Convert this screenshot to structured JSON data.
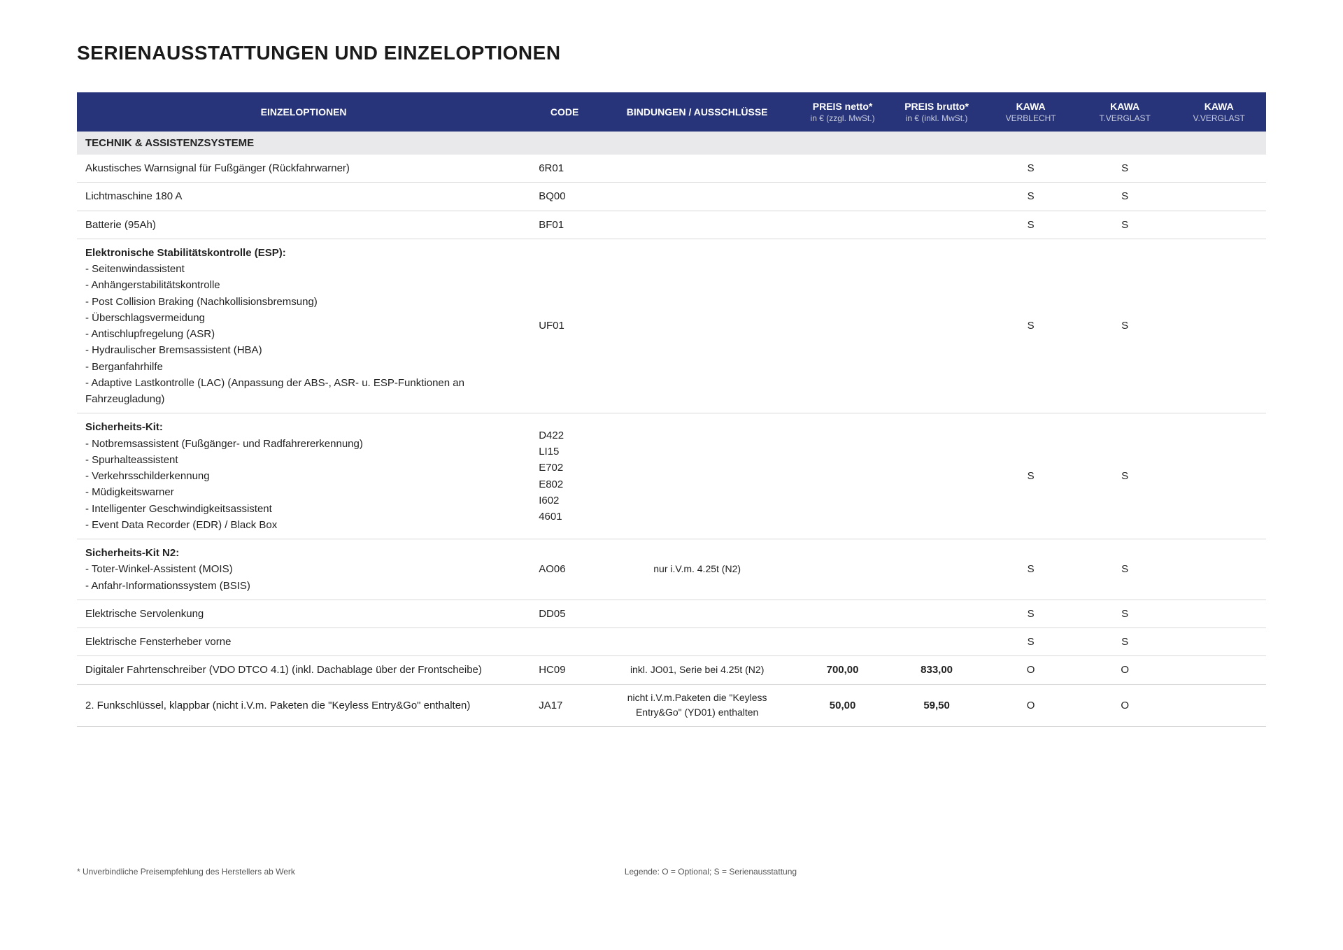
{
  "title": "SERIENAUSSTATTUNGEN UND EINZELOPTIONEN",
  "colors": {
    "header_bg": "#27347a",
    "header_text": "#ffffff",
    "section_bg": "#e9e9ec",
    "row_border": "#d9d9dc"
  },
  "columns": {
    "opt": "EINZELOPTIONEN",
    "code": "CODE",
    "bind": "BINDUNGEN / AUSSCHLÜSSE",
    "netto": "PREIS netto*",
    "netto_sub": "in € (zzgl. MwSt.)",
    "brutto": "PREIS brutto*",
    "brutto_sub": "in € (inkl. MwSt.)",
    "kawa1": "KAWA",
    "kawa1_sub": "VERBLECHT",
    "kawa2": "KAWA",
    "kawa2_sub": "T.VERGLAST",
    "kawa3": "KAWA",
    "kawa3_sub": "V.VERGLAST"
  },
  "section": "TECHNIK & ASSISTENZSYSTEME",
  "rows": [
    {
      "opt_title": "",
      "opt_lines": "Akustisches Warnsignal für Fußgänger (Rückfahrwarner)",
      "code": "6R01",
      "bind": "",
      "netto": "",
      "brutto": "",
      "k1": "S",
      "k2": "S",
      "k3": ""
    },
    {
      "opt_title": "",
      "opt_lines": "Lichtmaschine 180 A",
      "code": "BQ00",
      "bind": "",
      "netto": "",
      "brutto": "",
      "k1": "S",
      "k2": "S",
      "k3": ""
    },
    {
      "opt_title": "",
      "opt_lines": "Batterie (95Ah)",
      "code": "BF01",
      "bind": "",
      "netto": "",
      "brutto": "",
      "k1": "S",
      "k2": "S",
      "k3": ""
    },
    {
      "opt_title": "Elektronische Stabilitätskontrolle (ESP):",
      "opt_lines": "- Seitenwindassistent\n- Anhängerstabilitätskontrolle\n- Post Collision Braking (Nachkollisionsbremsung)\n- Überschlagsvermeidung\n- Antischlupfregelung (ASR)\n- Hydraulischer Bremsassistent (HBA)\n- Berganfahrhilfe\n- Adaptive Lastkontrolle (LAC)  (Anpassung der ABS-, ASR- u. ESP-Funktionen an Fahrzeugladung)",
      "code": "UF01",
      "bind": "",
      "netto": "",
      "brutto": "",
      "k1": "S",
      "k2": "S",
      "k3": ""
    },
    {
      "opt_title": "Sicherheits-Kit:",
      "opt_lines": "- Notbremsassistent (Fußgänger- und Radfahrererkennung)\n- Spurhalteassistent\n- Verkehrsschilderkennung\n- Müdigkeitswarner\n- Intelligenter Geschwindigkeitsassistent\n- Event Data Recorder (EDR) / Black Box",
      "code": "D422\nLI15\nE702\nE802\nI602\n4601",
      "bind": "",
      "netto": "",
      "brutto": "",
      "k1": "S",
      "k2": "S",
      "k3": ""
    },
    {
      "opt_title": "Sicherheits-Kit N2:",
      "opt_lines": "- Toter-Winkel-Assistent (MOIS)\n- Anfahr-Informationssystem (BSIS)",
      "code": "AO06",
      "bind": "nur i.V.m. 4.25t (N2)",
      "netto": "",
      "brutto": "",
      "k1": "S",
      "k2": "S",
      "k3": ""
    },
    {
      "opt_title": "",
      "opt_lines": "Elektrische Servolenkung",
      "code": "DD05",
      "bind": "",
      "netto": "",
      "brutto": "",
      "k1": "S",
      "k2": "S",
      "k3": ""
    },
    {
      "opt_title": "",
      "opt_lines": "Elektrische Fensterheber vorne",
      "code": "",
      "bind": "",
      "netto": "",
      "brutto": "",
      "k1": "S",
      "k2": "S",
      "k3": ""
    },
    {
      "opt_title": "",
      "opt_lines": "Digitaler Fahrtenschreiber (VDO DTCO 4.1) (inkl. Dachablage über der Frontscheibe)",
      "code": "HC09",
      "bind": "inkl. JO01,  Serie bei 4.25t (N2)",
      "netto": "700,00",
      "brutto": "833,00",
      "k1": "O",
      "k2": "O",
      "k3": ""
    },
    {
      "opt_title": "",
      "opt_lines": "2. Funkschlüssel, klappbar  (nicht i.V.m. Paketen die \"Keyless Entry&Go\" enthalten)",
      "code": "JA17",
      "bind": "nicht i.V.m.Paketen die \"Keyless Entry&Go\" (YD01) enthalten",
      "netto": "50,00",
      "brutto": "59,50",
      "k1": "O",
      "k2": "O",
      "k3": ""
    }
  ],
  "footer": {
    "left": "* Unverbindliche Preisempfehlung des Herstellers ab Werk",
    "mid": "Legende: O = Optional; S = Serienausstattung"
  }
}
